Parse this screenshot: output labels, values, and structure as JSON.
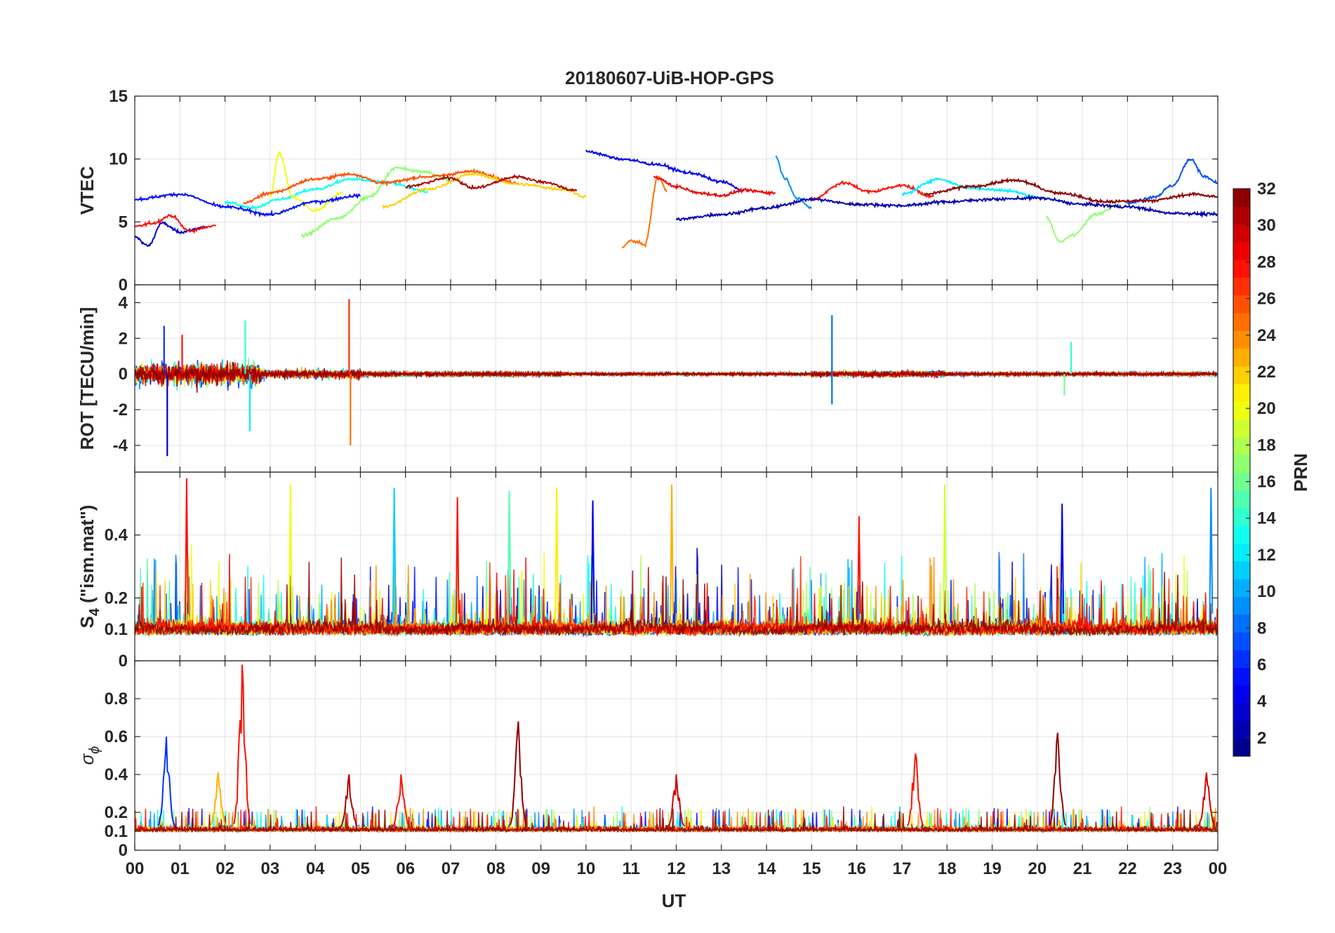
{
  "chart_data": {
    "type": "line",
    "title": "20180607-UiB-HOP-GPS",
    "xlabel": "UT",
    "x_ticks": [
      "00",
      "01",
      "02",
      "03",
      "04",
      "05",
      "06",
      "07",
      "08",
      "09",
      "10",
      "11",
      "12",
      "13",
      "14",
      "15",
      "16",
      "17",
      "18",
      "19",
      "20",
      "21",
      "22",
      "23",
      "00"
    ],
    "xlim": [
      0,
      24
    ],
    "panels": [
      {
        "name": "vtec",
        "ylabel": "VTEC",
        "ylim": [
          0,
          15
        ],
        "y_ticks": [
          0,
          5,
          10,
          15
        ],
        "y_tick_labels": [
          "0",
          "5",
          "10",
          "15"
        ],
        "description_series": "one line per PRN",
        "series": [
          {
            "prn": 3,
            "x": [
              0.0,
              0.3,
              0.6,
              1.0,
              1.6
            ],
            "y": [
              3.8,
              3.1,
              4.9,
              4.2,
              4.6
            ]
          },
          {
            "prn": 28,
            "x": [
              0.0,
              0.4,
              0.8,
              1.2,
              1.8
            ],
            "y": [
              4.6,
              4.9,
              5.5,
              4.3,
              4.7
            ]
          },
          {
            "prn": 13,
            "x": [
              2.0,
              2.6,
              3.2,
              4.0,
              4.8,
              5.6,
              6.5
            ],
            "y": [
              6.6,
              6.1,
              6.8,
              7.6,
              8.4,
              8.1,
              7.4
            ]
          },
          {
            "prn": 20,
            "x": [
              3.0,
              3.2,
              3.5,
              4.0,
              4.6
            ],
            "y": [
              7.0,
              10.5,
              7.0,
              5.9,
              7.3
            ]
          },
          {
            "prn": 17,
            "x": [
              3.7,
              4.5,
              5.2,
              5.8,
              6.4,
              7.0
            ],
            "y": [
              3.9,
              5.3,
              7.0,
              9.3,
              9.0,
              8.3
            ]
          },
          {
            "prn": 26,
            "x": [
              2.4,
              3.0,
              4.0,
              4.8,
              5.5,
              6.5,
              7.5,
              8.5
            ],
            "y": [
              6.5,
              7.3,
              8.4,
              8.8,
              8.1,
              8.6,
              9.0,
              8.1
            ]
          },
          {
            "prn": 5,
            "x": [
              0.0,
              1.0,
              2.0,
              3.0,
              4.0,
              5.0
            ],
            "y": [
              6.8,
              7.2,
              6.2,
              5.6,
              6.6,
              7.1
            ]
          },
          {
            "prn": 22,
            "x": [
              5.5,
              6.5,
              7.5,
              8.5,
              9.5,
              10.0
            ],
            "y": [
              6.2,
              7.6,
              8.8,
              8.0,
              7.6,
              7.0
            ]
          },
          {
            "prn": 31,
            "x": [
              6.0,
              7.0,
              7.5,
              8.5,
              9.0,
              9.8
            ],
            "y": [
              7.8,
              8.5,
              7.7,
              8.6,
              8.2,
              7.5
            ]
          },
          {
            "prn": 4,
            "x": [
              10.0,
              10.8,
              11.5,
              12.3,
              13.0,
              13.5
            ],
            "y": [
              10.6,
              10.0,
              9.6,
              8.9,
              8.2,
              7.5
            ]
          },
          {
            "prn": 25,
            "x": [
              10.8,
              11.0,
              11.3,
              11.6,
              11.8
            ],
            "y": [
              3.0,
              3.5,
              3.2,
              8.6,
              7.4
            ]
          },
          {
            "prn": 29,
            "x": [
              11.5,
              12.0,
              12.5,
              13.0,
              13.5,
              14.2
            ],
            "y": [
              8.6,
              7.8,
              7.3,
              7.1,
              7.5,
              7.3
            ]
          },
          {
            "prn": 9,
            "x": [
              14.2,
              14.4,
              14.7,
              15.0
            ],
            "y": [
              10.2,
              8.5,
              6.8,
              6.1
            ]
          },
          {
            "prn": 28,
            "x": [
              15.0,
              15.7,
              16.3,
              17.0,
              17.7
            ],
            "y": [
              6.8,
              8.1,
              7.4,
              7.9,
              7.0
            ]
          },
          {
            "prn": 12,
            "x": [
              17.0,
              17.8,
              18.5,
              19.3,
              20.0
            ],
            "y": [
              7.2,
              8.4,
              7.7,
              7.5,
              7.0
            ]
          },
          {
            "prn": 17,
            "x": [
              20.2,
              20.5,
              20.8,
              21.3,
              21.8
            ],
            "y": [
              5.4,
              3.4,
              4.0,
              5.6,
              6.4
            ]
          },
          {
            "prn": 7,
            "x": [
              22.0,
              22.6,
              23.0,
              23.4,
              23.7,
              24.0
            ],
            "y": [
              6.5,
              7.0,
              7.9,
              10.0,
              8.6,
              8.1
            ]
          },
          {
            "prn": 32,
            "x": [
              17.5,
              18.5,
              19.5,
              20.5,
              21.5,
              22.5,
              23.5,
              24.0
            ],
            "y": [
              7.2,
              7.8,
              8.3,
              7.3,
              6.6,
              6.7,
              7.2,
              7.0
            ]
          },
          {
            "prn": 2,
            "x": [
              12.0,
              13.0,
              14.0,
              15.0,
              16.0,
              17.0,
              18.0,
              19.0,
              20.0,
              21.0,
              22.0,
              23.0,
              24.0
            ],
            "y": [
              5.2,
              5.6,
              6.1,
              6.8,
              6.4,
              6.3,
              6.6,
              6.8,
              6.9,
              6.4,
              6.2,
              5.7,
              5.6
            ]
          }
        ]
      },
      {
        "name": "rot",
        "ylabel": "ROT [TECU/min]",
        "ylim": [
          -5.5,
          5.0
        ],
        "y_ticks": [
          -4,
          -2,
          0,
          2,
          4
        ],
        "y_tick_labels": [
          "-4",
          "-2",
          "0",
          "2",
          "4"
        ],
        "spikes": [
          {
            "prn": 3,
            "x": 0.72,
            "y": -4.6
          },
          {
            "prn": 6,
            "x": 0.65,
            "y": 2.7
          },
          {
            "prn": 28,
            "x": 1.05,
            "y": 2.2
          },
          {
            "prn": 14,
            "x": 2.45,
            "y": 3.0
          },
          {
            "prn": 12,
            "x": 2.55,
            "y": -3.2
          },
          {
            "prn": 27,
            "x": 4.75,
            "y": 4.2
          },
          {
            "prn": 25,
            "x": 4.78,
            "y": -4.0
          },
          {
            "prn": 8,
            "x": 15.45,
            "y": 3.3
          },
          {
            "prn": 8,
            "x": 15.45,
            "y": -1.7
          },
          {
            "prn": 14,
            "x": 20.75,
            "y": 1.8
          },
          {
            "prn": 16,
            "x": 20.6,
            "y": -1.2
          }
        ]
      },
      {
        "name": "s4",
        "ylabel_base": "S",
        "ylabel_sub": "4",
        "ylabel_rest": " (\"ism.mat\")",
        "ylim": [
          0,
          0.6
        ],
        "y_ticks": [
          0,
          0.1,
          0.2,
          0.4
        ],
        "y_tick_labels": [
          "0",
          "0.1",
          "0.2",
          "0.4"
        ],
        "peaks": [
          {
            "prn": 28,
            "x": 1.15,
            "y": 0.58
          },
          {
            "prn": 20,
            "x": 3.45,
            "y": 0.56
          },
          {
            "prn": 11,
            "x": 5.75,
            "y": 0.55
          },
          {
            "prn": 28,
            "x": 7.15,
            "y": 0.52
          },
          {
            "prn": 15,
            "x": 8.3,
            "y": 0.54
          },
          {
            "prn": 21,
            "x": 9.35,
            "y": 0.55
          },
          {
            "prn": 4,
            "x": 10.15,
            "y": 0.51
          },
          {
            "prn": 23,
            "x": 11.9,
            "y": 0.56
          },
          {
            "prn": 28,
            "x": 16.05,
            "y": 0.46
          },
          {
            "prn": 19,
            "x": 17.95,
            "y": 0.56
          },
          {
            "prn": 4,
            "x": 20.55,
            "y": 0.5
          },
          {
            "prn": 9,
            "x": 23.85,
            "y": 0.55
          }
        ]
      },
      {
        "name": "sigma_phi",
        "ylabel_base": "σ",
        "ylabel_sub": "ϕ",
        "ylim": [
          0,
          1.0
        ],
        "y_ticks": [
          0,
          0.1,
          0.2,
          0.4,
          0.6,
          0.8
        ],
        "y_tick_labels": [
          "0",
          "0.1",
          "0.2",
          "0.4",
          "0.6",
          "0.8"
        ],
        "peaks": [
          {
            "prn": 6,
            "x": 0.7,
            "y": 0.6
          },
          {
            "prn": 28,
            "x": 2.38,
            "y": 0.98
          },
          {
            "prn": 23,
            "x": 1.85,
            "y": 0.41
          },
          {
            "prn": 31,
            "x": 4.75,
            "y": 0.4
          },
          {
            "prn": 28,
            "x": 5.9,
            "y": 0.4
          },
          {
            "prn": 32,
            "x": 8.5,
            "y": 0.68
          },
          {
            "prn": 30,
            "x": 12.0,
            "y": 0.4
          },
          {
            "prn": 28,
            "x": 17.3,
            "y": 0.51
          },
          {
            "prn": 32,
            "x": 20.45,
            "y": 0.62
          },
          {
            "prn": 30,
            "x": 23.75,
            "y": 0.41
          }
        ]
      }
    ],
    "colorbar": {
      "label": "PRN",
      "range": [
        1,
        32
      ],
      "tick_values": [
        2,
        4,
        6,
        8,
        10,
        12,
        14,
        16,
        18,
        20,
        22,
        24,
        26,
        28,
        30,
        32
      ],
      "tick_labels": [
        "2",
        "4",
        "6",
        "8",
        "10",
        "12",
        "14",
        "16",
        "18",
        "20",
        "22",
        "24",
        "26",
        "28",
        "30",
        "32"
      ],
      "colormap": "jet"
    }
  }
}
